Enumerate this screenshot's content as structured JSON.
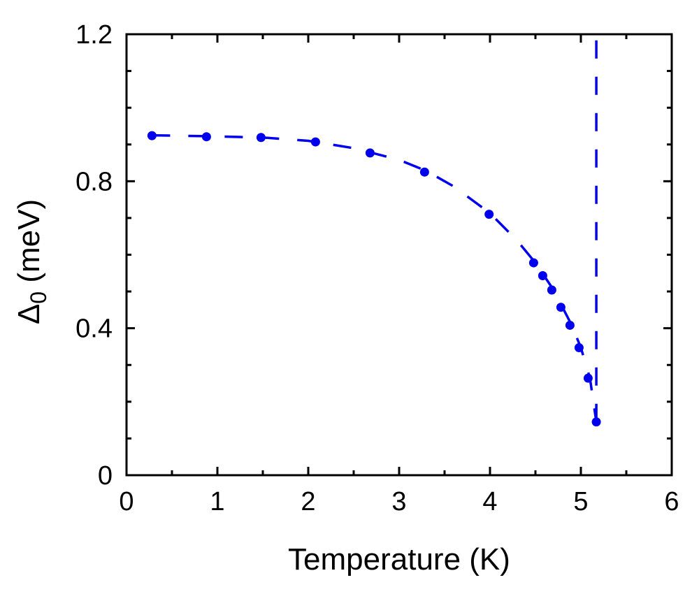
{
  "chart_data": {
    "type": "scatter",
    "xlabel": "Temperature (K)",
    "ylabel_symbol": "Δ",
    "ylabel_subscript": "0",
    "ylabel_unit": " (meV)",
    "xlim": [
      0,
      6
    ],
    "ylim": [
      0,
      1.2
    ],
    "x_ticks": [
      0,
      1,
      2,
      3,
      4,
      5,
      6
    ],
    "x_tick_labels": [
      "0",
      "1",
      "2",
      "3",
      "4",
      "5",
      "6"
    ],
    "x_minor_step": 0.5,
    "y_ticks": [
      0,
      0.4,
      0.8,
      1.2
    ],
    "y_tick_labels": [
      "0",
      "0.4",
      "0.8",
      "1.2"
    ],
    "y_minor_step": 0.1,
    "grid": false,
    "color": "#0000ee",
    "series": [
      {
        "style": "markers",
        "x": [
          0.28,
          0.88,
          1.48,
          2.08,
          2.68,
          3.28,
          3.99,
          4.48,
          4.58,
          4.68,
          4.78,
          4.88,
          4.98,
          5.08,
          5.17
        ],
        "y": [
          0.924,
          0.921,
          0.919,
          0.907,
          0.877,
          0.825,
          0.71,
          0.578,
          0.543,
          0.504,
          0.457,
          0.408,
          0.347,
          0.264,
          0.145
        ]
      },
      {
        "style": "dashed-fit",
        "x": [
          0.28,
          1.0,
          1.5,
          2.0,
          2.5,
          3.0,
          3.3,
          3.6,
          4.0,
          4.3,
          4.5,
          4.7,
          4.9,
          5.0,
          5.1,
          5.17
        ],
        "y": [
          0.925,
          0.922,
          0.919,
          0.91,
          0.89,
          0.858,
          0.828,
          0.786,
          0.713,
          0.638,
          0.578,
          0.504,
          0.408,
          0.347,
          0.264,
          0.145
        ]
      },
      {
        "style": "dashed-vertical",
        "x": [
          5.17,
          5.17
        ],
        "y": [
          0.145,
          1.2
        ]
      }
    ]
  }
}
